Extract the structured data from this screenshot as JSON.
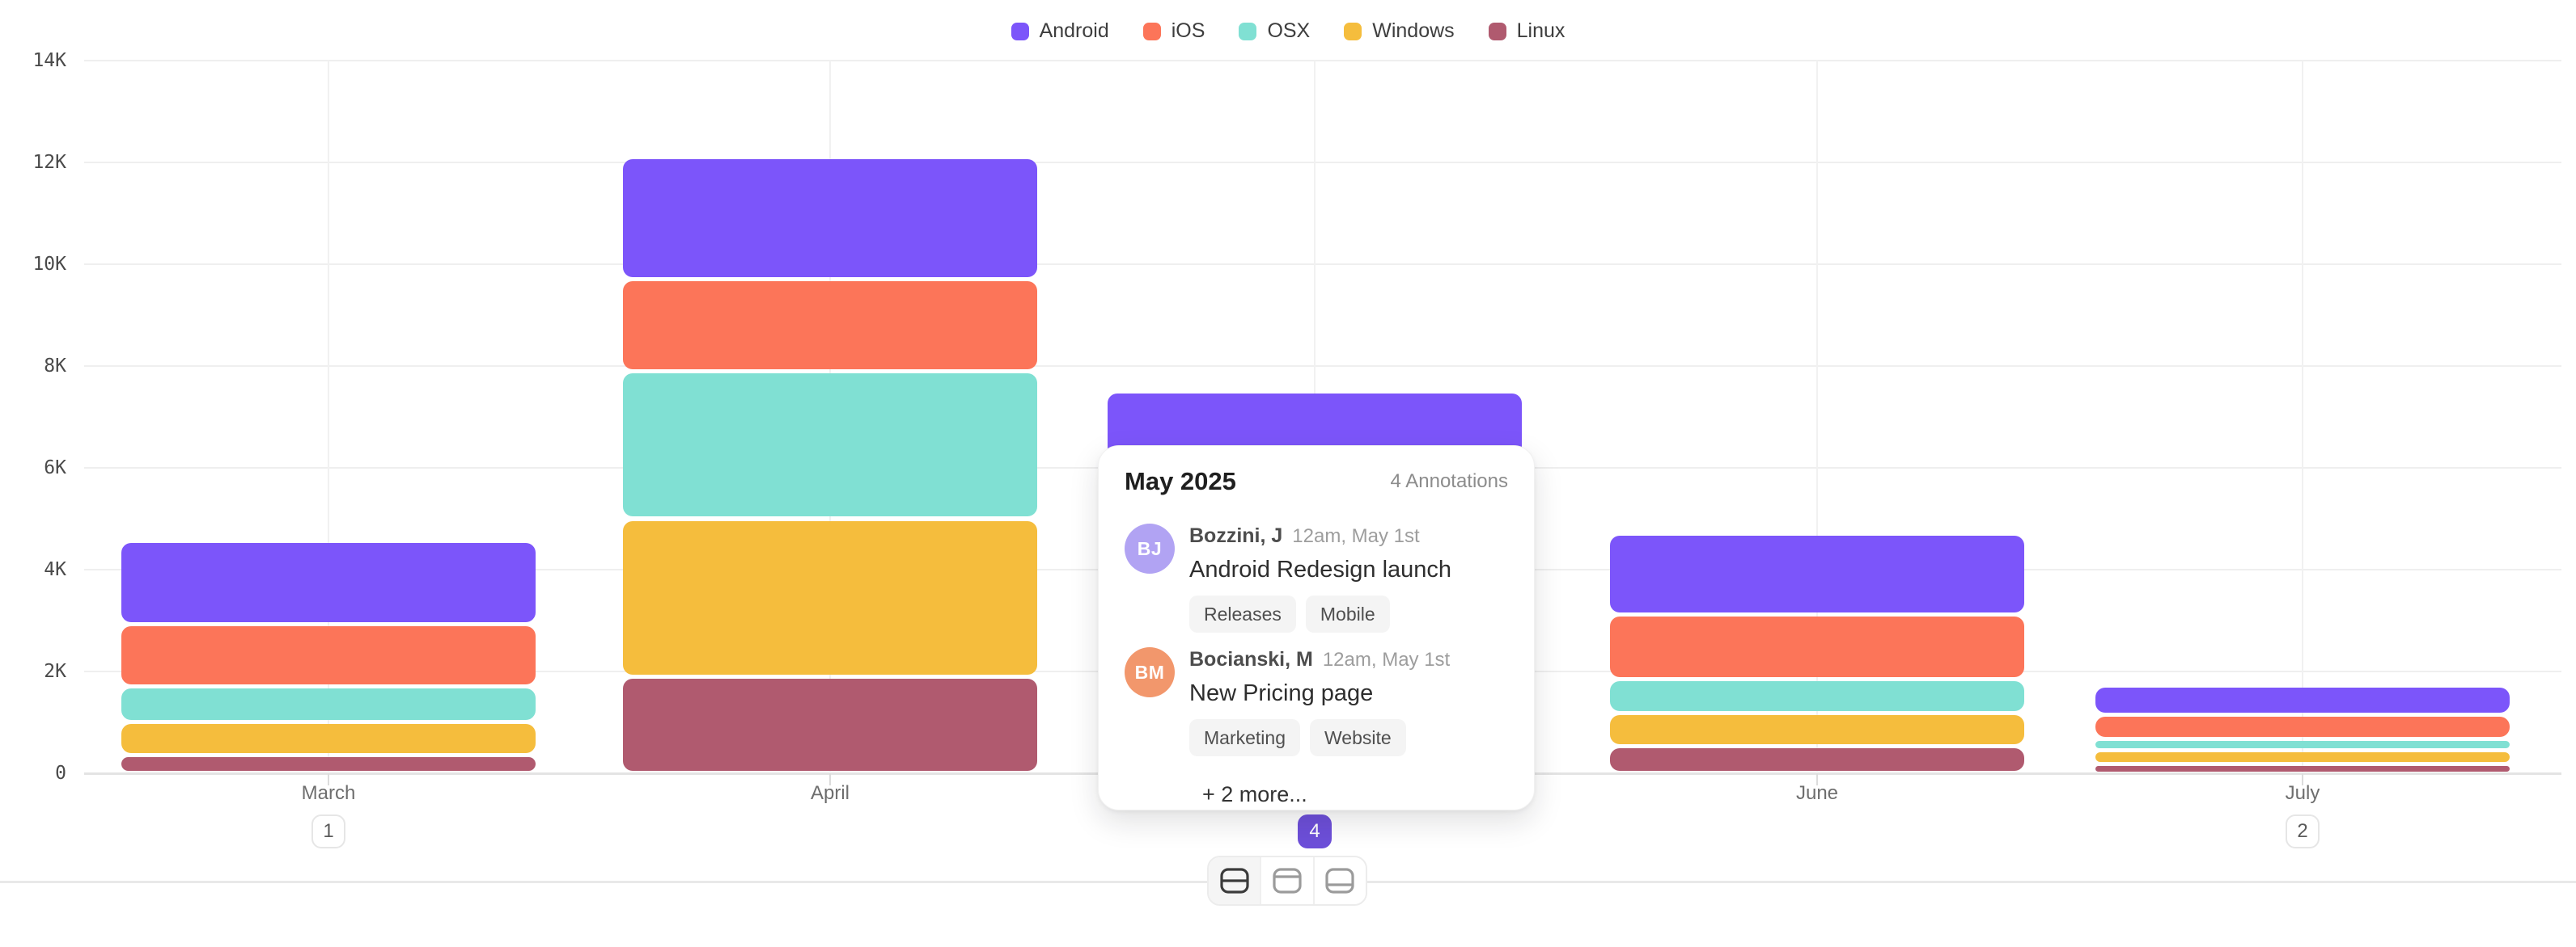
{
  "chart_data": {
    "type": "bar",
    "variant": "stacked-vertical-with-segment-gaps",
    "title": "",
    "categories": [
      "March",
      "April",
      "May",
      "June",
      "July"
    ],
    "series": [
      {
        "name": "Android",
        "color": "#7C55FA",
        "values": [
          1630,
          2400,
          null,
          1590,
          580
        ]
      },
      {
        "name": "iOS",
        "color": "#FC7559",
        "values": [
          1220,
          1800,
          null,
          1270,
          480
        ]
      },
      {
        "name": "OSX",
        "color": "#80E0D3",
        "values": [
          700,
          2900,
          null,
          670,
          220
        ]
      },
      {
        "name": "Windows",
        "color": "#F5BD3D",
        "values": [
          650,
          3100,
          null,
          650,
          270
        ]
      },
      {
        "name": "Linux",
        "color": "#B05A6F",
        "values": [
          360,
          1900,
          null,
          530,
          180
        ]
      }
    ],
    "stack_order_top_to_bottom": [
      "Android",
      "iOS",
      "OSX",
      "Windows",
      "Linux"
    ],
    "may_visible_stack_top": 7500,
    "may_note": "May 2025 segment breakdown is hidden behind the annotation popup; only the top of the stack (~7.5K, Android color) is visible",
    "ylim": [
      0,
      14000
    ],
    "yticks": [
      {
        "v": 0,
        "label": "0"
      },
      {
        "v": 2000,
        "label": "2K"
      },
      {
        "v": 4000,
        "label": "4K"
      },
      {
        "v": 6000,
        "label": "6K"
      },
      {
        "v": 8000,
        "label": "8K"
      },
      {
        "v": 10000,
        "label": "10K"
      },
      {
        "v": 12000,
        "label": "12K"
      },
      {
        "v": 14000,
        "label": "14K"
      }
    ],
    "legend_position": "top-center",
    "grid": true
  },
  "x_axis": {
    "items": [
      {
        "label": "March",
        "badge": "1",
        "active": false
      },
      {
        "label": "April",
        "badge": null,
        "active": false
      },
      {
        "label": "May",
        "badge": "4",
        "active": true
      },
      {
        "label": "June",
        "badge": null,
        "active": false
      },
      {
        "label": "July",
        "badge": "2",
        "active": false
      }
    ]
  },
  "popup": {
    "title": "May 2025",
    "annotations_label": "4 Annotations",
    "items": [
      {
        "initials": "BJ",
        "avatar_color": "#B1A3F3",
        "author": "Bozzini, J",
        "time": "12am, May 1st",
        "text": "Android Redesign launch",
        "tags": [
          "Releases",
          "Mobile"
        ]
      },
      {
        "initials": "BM",
        "avatar_color": "#F2976C",
        "author": "Bocianski, M",
        "time": "12am, May 1st",
        "text": "New Pricing page",
        "tags": [
          "Marketing",
          "Website"
        ]
      }
    ],
    "more_label": "+ 2 more..."
  },
  "toolbar": {
    "active_index": 0,
    "buttons": [
      "layout-split-rows-icon",
      "layout-header-panel-icon",
      "layout-footer-panel-icon"
    ]
  },
  "colors": {
    "badge_active_bg": "#6D4FD9",
    "grid_line": "#EFEFEF",
    "grid_line_vertical": "#F1F1F1",
    "axis_baseline": "#E4E4E4",
    "tick_stub": "#DCDCDC",
    "bottom_timeline": "#E9E9E9"
  }
}
